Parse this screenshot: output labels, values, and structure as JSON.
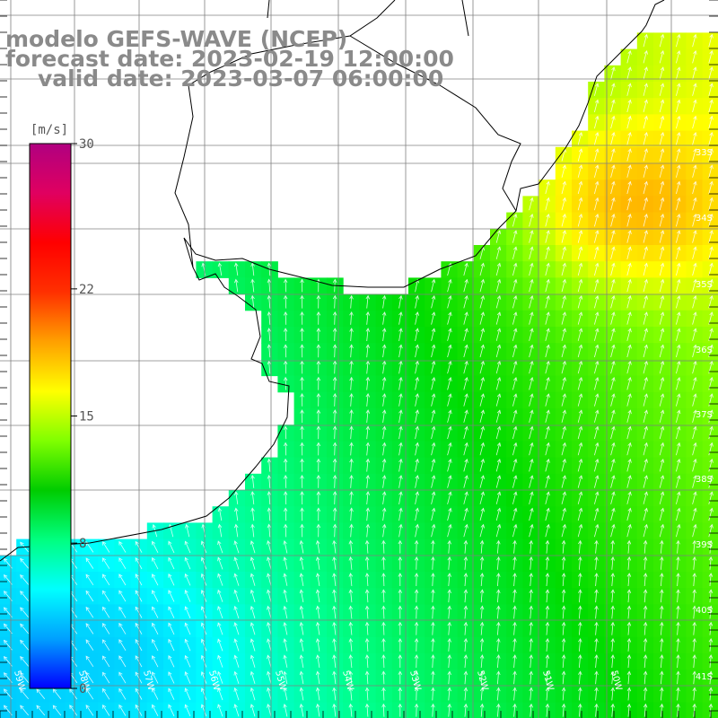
{
  "title": {
    "model": "modelo GEFS-WAVE (NCEP)",
    "forecast": "forecast date: 2023-02-19 12:00:00",
    "valid": "valid date: 2023-03-07 06:00:00"
  },
  "colorbar": {
    "unit": "[m/s]",
    "ticks": [
      "30",
      "22",
      "15",
      "8",
      "0"
    ],
    "tick_values": [
      30,
      22,
      15,
      8,
      0
    ],
    "range": [
      0,
      30
    ],
    "colors": [
      "#0000ff",
      "#00a0ff",
      "#00ffff",
      "#00ff80",
      "#00cc00",
      "#80ff00",
      "#ffff00",
      "#ffa000",
      "#ff3000",
      "#ff0000",
      "#e00060",
      "#b00080"
    ]
  },
  "lat_labels": [
    "33S",
    "34S",
    "35S",
    "36S",
    "37S",
    "38S",
    "39S",
    "40S",
    "41S"
  ],
  "lon_labels": [
    "59W",
    "58W",
    "57W",
    "56W",
    "55W",
    "54W",
    "53W",
    "52W",
    "51W",
    "50W"
  ],
  "colors": {
    "land": "#ffffff",
    "grid": "#808080",
    "coast": "#000000",
    "arrow": "#ffffff",
    "title": "#8a8a8a"
  }
}
